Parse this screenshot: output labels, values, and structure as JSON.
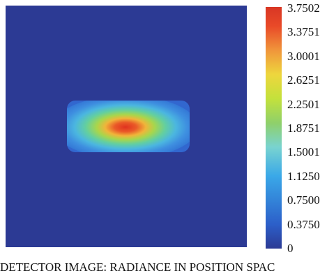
{
  "caption": "DETECTOR IMAGE: RADIANCE IN POSITION SPAC",
  "chart_data": {
    "type": "heatmap",
    "colorbar": {
      "tick_labels": [
        "3.7502",
        "3.3751",
        "3.0001",
        "2.6251",
        "2.2501",
        "1.8751",
        "1.5001",
        "1.1250",
        "0.7500",
        "0.3750",
        "0"
      ],
      "min": 0,
      "max": 3.7502
    },
    "background_value": 0,
    "spot": {
      "peak_value": 3.75,
      "shape": "elliptical"
    },
    "colors": {
      "low": "#2c3a94",
      "mid": "#8fd06a",
      "high": "#d83624"
    }
  }
}
